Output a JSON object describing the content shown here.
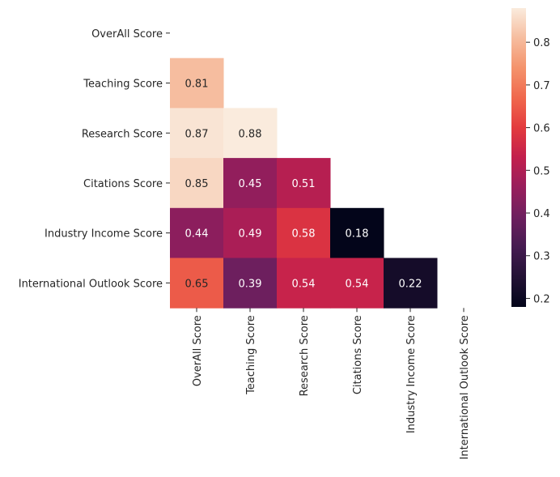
{
  "chart_data": {
    "type": "heatmap",
    "mask": "upper-triangle",
    "row_labels": [
      "OverAll Score",
      "Teaching Score",
      "Research Score",
      "Citations Score",
      "Industry Income Score",
      "International Outlook Score"
    ],
    "col_labels": [
      "OverAll Score",
      "Teaching Score",
      "Research Score",
      "Citations Score",
      "Industry Income Score",
      "International Outlook Score"
    ],
    "values": [
      [
        null,
        null,
        null,
        null,
        null,
        null
      ],
      [
        0.81,
        null,
        null,
        null,
        null,
        null
      ],
      [
        0.87,
        0.88,
        null,
        null,
        null,
        null
      ],
      [
        0.85,
        0.45,
        0.51,
        null,
        null,
        null
      ],
      [
        0.44,
        0.49,
        0.58,
        0.18,
        null,
        null
      ],
      [
        0.65,
        0.39,
        0.54,
        0.54,
        0.22,
        null
      ]
    ],
    "value_labels": [
      [
        null,
        null,
        null,
        null,
        null,
        null
      ],
      [
        "0.81",
        null,
        null,
        null,
        null,
        null
      ],
      [
        "0.87",
        "0.88",
        null,
        null,
        null,
        null
      ],
      [
        "0.85",
        "0.45",
        "0.51",
        null,
        null,
        null
      ],
      [
        "0.44",
        "0.49",
        "0.58",
        "0.18",
        null,
        null
      ],
      [
        "0.65",
        "0.39",
        "0.54",
        "0.54",
        "0.22",
        null
      ]
    ],
    "colormap": "rocket",
    "vmin": 0.18,
    "vmax": 0.88,
    "colorbar": {
      "ticks": [
        0.2,
        0.3,
        0.4,
        0.5,
        0.6,
        0.7,
        0.8
      ],
      "tick_labels": [
        "0.2",
        "0.3",
        "0.4",
        "0.5",
        "0.6",
        "0.7",
        "0.8"
      ]
    },
    "grid": false
  }
}
